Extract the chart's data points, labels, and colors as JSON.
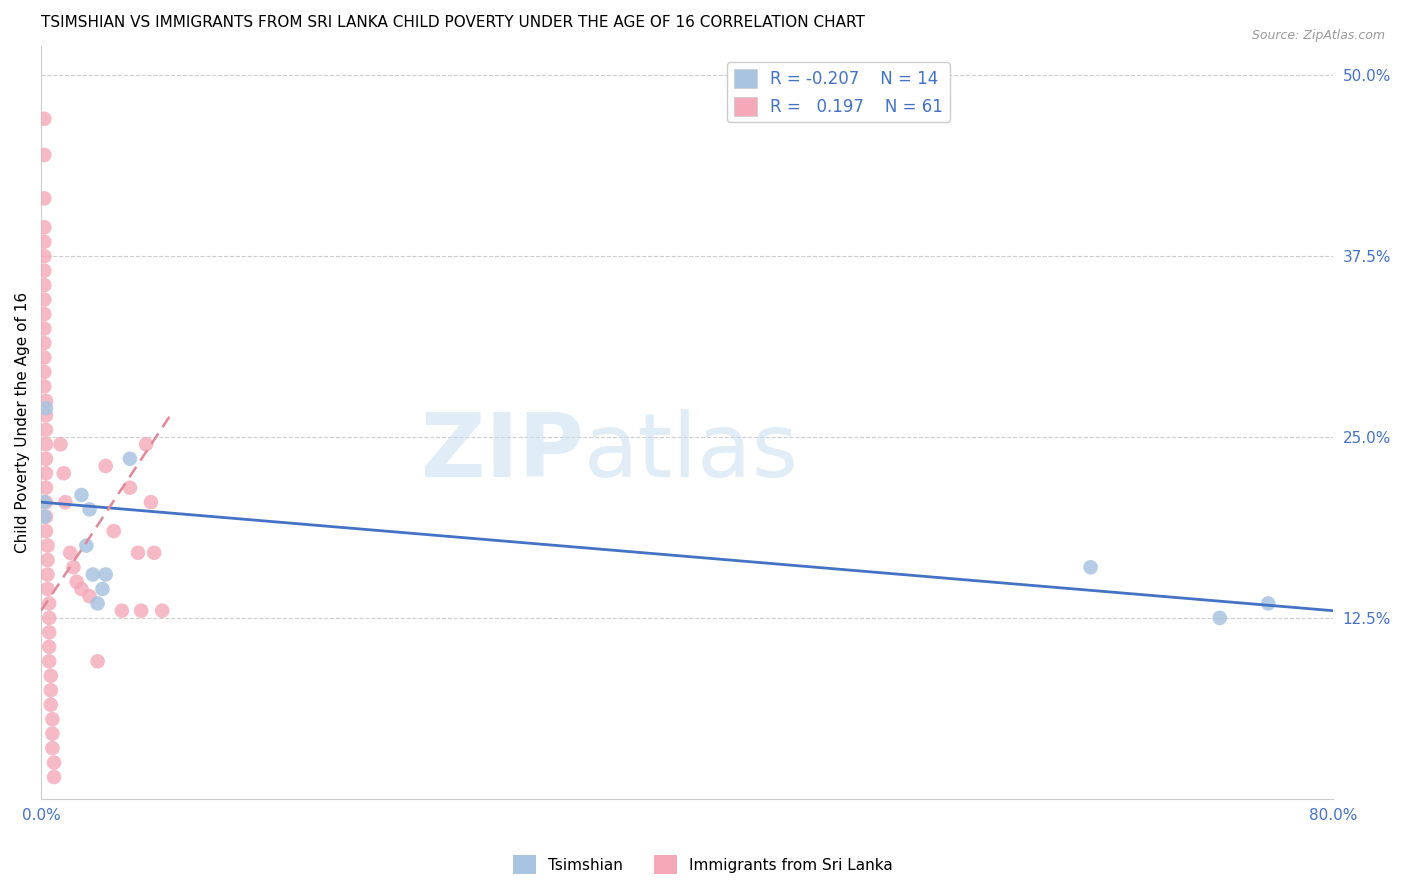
{
  "title": "TSIMSHIAN VS IMMIGRANTS FROM SRI LANKA CHILD POVERTY UNDER THE AGE OF 16 CORRELATION CHART",
  "source": "Source: ZipAtlas.com",
  "ylabel": "Child Poverty Under the Age of 16",
  "xlim": [
    0,
    0.8
  ],
  "ylim": [
    0,
    0.52
  ],
  "xticks": [
    0.0,
    0.1,
    0.2,
    0.3,
    0.4,
    0.5,
    0.6,
    0.7,
    0.8
  ],
  "xticklabels": [
    "0.0%",
    "",
    "",
    "",
    "",
    "",
    "",
    "",
    "80.0%"
  ],
  "yticks_right": [
    0.125,
    0.25,
    0.375,
    0.5
  ],
  "yticklabels_right": [
    "12.5%",
    "25.0%",
    "37.5%",
    "50.0%"
  ],
  "legend_R1": "-0.207",
  "legend_N1": "14",
  "legend_R2": "0.197",
  "legend_N2": "61",
  "color_tsimshian": "#a8c4e0",
  "color_srilanka": "#f4a8b8",
  "color_tsimshian_line": "#4472c4",
  "tsimshian_x": [
    0.002,
    0.002,
    0.003,
    0.025,
    0.028,
    0.03,
    0.032,
    0.035,
    0.038,
    0.04,
    0.055,
    0.65,
    0.73,
    0.76
  ],
  "tsimshian_y": [
    0.205,
    0.195,
    0.27,
    0.21,
    0.175,
    0.2,
    0.155,
    0.135,
    0.145,
    0.155,
    0.235,
    0.16,
    0.125,
    0.135
  ],
  "srilanka_x": [
    0.002,
    0.002,
    0.002,
    0.002,
    0.002,
    0.002,
    0.002,
    0.002,
    0.002,
    0.002,
    0.002,
    0.002,
    0.002,
    0.002,
    0.002,
    0.003,
    0.003,
    0.003,
    0.003,
    0.003,
    0.003,
    0.003,
    0.003,
    0.003,
    0.003,
    0.004,
    0.004,
    0.004,
    0.004,
    0.005,
    0.005,
    0.005,
    0.005,
    0.005,
    0.006,
    0.006,
    0.006,
    0.007,
    0.007,
    0.007,
    0.008,
    0.008,
    0.012,
    0.014,
    0.015,
    0.018,
    0.02,
    0.022,
    0.025,
    0.03,
    0.035,
    0.04,
    0.045,
    0.05,
    0.055,
    0.06,
    0.062,
    0.065,
    0.068,
    0.07,
    0.075
  ],
  "srilanka_y": [
    0.47,
    0.445,
    0.415,
    0.395,
    0.385,
    0.375,
    0.365,
    0.355,
    0.345,
    0.335,
    0.325,
    0.315,
    0.305,
    0.295,
    0.285,
    0.275,
    0.265,
    0.255,
    0.245,
    0.235,
    0.225,
    0.215,
    0.205,
    0.195,
    0.185,
    0.175,
    0.165,
    0.155,
    0.145,
    0.135,
    0.125,
    0.115,
    0.105,
    0.095,
    0.085,
    0.075,
    0.065,
    0.055,
    0.045,
    0.035,
    0.025,
    0.015,
    0.245,
    0.225,
    0.205,
    0.17,
    0.16,
    0.15,
    0.145,
    0.14,
    0.095,
    0.23,
    0.185,
    0.13,
    0.215,
    0.17,
    0.13,
    0.245,
    0.205,
    0.17,
    0.13
  ],
  "tsimshian_trend_x": [
    0.0,
    0.8
  ],
  "tsimshian_trend_y": [
    0.205,
    0.13
  ],
  "srilanka_trend_x": [
    0.0,
    0.08
  ],
  "srilanka_trend_y": [
    0.13,
    0.265
  ]
}
